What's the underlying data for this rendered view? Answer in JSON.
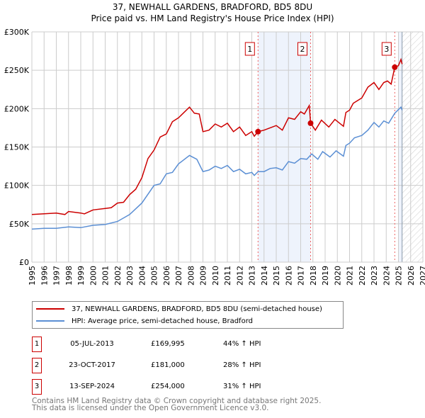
{
  "header": {
    "title": "37, NEWHALL GARDENS, BRADFORD, BD5 8DU",
    "subtitle": "Price paid vs. HM Land Registry's House Price Index (HPI)"
  },
  "colors": {
    "property": "#cc0000",
    "hpi": "#5b8fd4",
    "shade": "#eef3fc"
  },
  "chart_data": {
    "type": "line",
    "title": "37, NEWHALL GARDENS, BRADFORD, BD5 8DU",
    "subtitle": "Price paid vs. HM Land Registry's House Price Index (HPI)",
    "xlim": [
      1995,
      2027
    ],
    "ylim": [
      0,
      300000
    ],
    "grid": true,
    "yticks": [
      0,
      50000,
      100000,
      150000,
      200000,
      250000,
      300000
    ],
    "ytick_labels": [
      "£0",
      "£50K",
      "£100K",
      "£150K",
      "£200K",
      "£250K",
      "£300K"
    ],
    "xticks": [
      "1995",
      "1996",
      "1997",
      "1998",
      "1999",
      "2000",
      "2001",
      "2002",
      "2003",
      "2004",
      "2005",
      "2006",
      "2007",
      "2008",
      "2009",
      "2010",
      "2011",
      "2012",
      "2013",
      "2014",
      "2015",
      "2016",
      "2017",
      "2018",
      "2019",
      "2020",
      "2021",
      "2022",
      "2023",
      "2024",
      "2025",
      "2026",
      "2027"
    ],
    "forecast_start": 2025.3,
    "shaded_ranges": [
      [
        2013.51,
        2017.81
      ],
      [
        2025.0,
        2025.3
      ]
    ],
    "series": [
      {
        "name": "37, NEWHALL GARDENS, BRADFORD, BD5 8DU (semi-detached house)",
        "color": "#cc0000",
        "x": [
          1995,
          1996,
          1997,
          1997.7,
          1998,
          1999,
          1999.3,
          2000,
          2001,
          2001.5,
          2002,
          2002.5,
          2003,
          2003.5,
          2004,
          2004.5,
          2005,
          2005.5,
          2006,
          2006.5,
          2007,
          2007.9,
          2008.3,
          2008.7,
          2009,
          2009.5,
          2010,
          2010.5,
          2011,
          2011.5,
          2012,
          2012.5,
          2013,
          2013.2,
          2013.51,
          2014,
          2014.5,
          2015,
          2015.5,
          2016,
          2016.5,
          2017,
          2017.3,
          2017.7,
          2017.81,
          2018.2,
          2018.7,
          2019.3,
          2019.8,
          2020.5,
          2020.7,
          2021,
          2021.3,
          2022,
          2022.5,
          2023,
          2023.4,
          2023.8,
          2024.1,
          2024.4,
          2024.7,
          2025,
          2025.2,
          2025.3
        ],
        "values": [
          62000,
          63000,
          64000,
          62000,
          66000,
          64000,
          63000,
          68000,
          70000,
          71000,
          77000,
          78000,
          88000,
          95000,
          110000,
          135000,
          146000,
          163000,
          167000,
          183000,
          188000,
          202000,
          194000,
          193000,
          170000,
          172000,
          180000,
          176000,
          181000,
          170000,
          176000,
          165000,
          170000,
          164000,
          169995,
          172000,
          175000,
          178000,
          172000,
          188000,
          186000,
          196000,
          193000,
          204000,
          181000,
          172000,
          185000,
          176000,
          186000,
          177000,
          195000,
          198000,
          207000,
          214000,
          228000,
          234000,
          225000,
          234000,
          236000,
          232000,
          254000,
          256000,
          264000,
          258000
        ]
      },
      {
        "name": "HPI: Average price, semi-detached house, Bradford",
        "color": "#5b8fd4",
        "x": [
          1995,
          1996,
          1997,
          1998,
          1999,
          2000,
          2001,
          2002,
          2003,
          2004,
          2005,
          2005.5,
          2006,
          2006.5,
          2007,
          2007.9,
          2008.5,
          2009,
          2009.5,
          2010,
          2010.5,
          2011,
          2011.5,
          2012,
          2012.5,
          2013,
          2013.2,
          2013.51,
          2014,
          2014.5,
          2015,
          2015.5,
          2016,
          2016.5,
          2017,
          2017.5,
          2017.9,
          2018.4,
          2018.8,
          2019.4,
          2019.9,
          2020.5,
          2020.7,
          2021,
          2021.4,
          2022,
          2022.5,
          2023,
          2023.4,
          2023.8,
          2024.2,
          2024.7,
          2025.2,
          2025.3
        ],
        "values": [
          43000,
          44000,
          44000,
          46000,
          45000,
          48000,
          49000,
          53000,
          62000,
          77000,
          100000,
          102000,
          115000,
          117000,
          128000,
          139000,
          134000,
          118000,
          120000,
          125000,
          122000,
          126000,
          118000,
          121000,
          115000,
          117000,
          113000,
          118000,
          118000,
          122000,
          123000,
          120000,
          131000,
          129000,
          135000,
          134000,
          141000,
          134000,
          144000,
          137000,
          145000,
          138000,
          152000,
          155000,
          162000,
          165000,
          172000,
          182000,
          176000,
          184000,
          181000,
          194000,
          202000,
          198000
        ]
      }
    ],
    "sales": [
      {
        "label": "1",
        "x": 2013.51,
        "price": 169995
      },
      {
        "label": "2",
        "x": 2017.81,
        "price": 181000
      },
      {
        "label": "3",
        "x": 2024.7,
        "price": 254000
      }
    ]
  },
  "legend": {
    "property": "37, NEWHALL GARDENS, BRADFORD, BD5 8DU (semi-detached house)",
    "hpi": "HPI: Average price, semi-detached house, Bradford"
  },
  "transactions": [
    {
      "num": "1",
      "date": "05-JUL-2013",
      "price": "£169,995",
      "delta": "44% ↑ HPI"
    },
    {
      "num": "2",
      "date": "23-OCT-2017",
      "price": "£181,000",
      "delta": "28% ↑ HPI"
    },
    {
      "num": "3",
      "date": "13-SEP-2024",
      "price": "£254,000",
      "delta": "31% ↑ HPI"
    }
  ],
  "footer": {
    "line1": "Contains HM Land Registry data © Crown copyright and database right 2025.",
    "line2": "This data is licensed under the Open Government Licence v3.0."
  }
}
